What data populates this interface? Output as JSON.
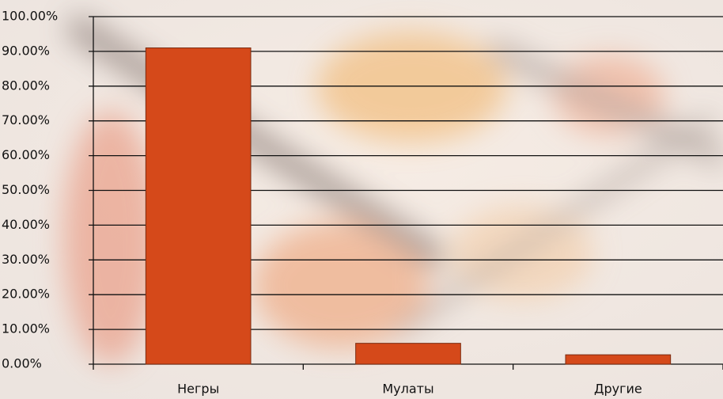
{
  "chart_data": {
    "type": "bar",
    "categories": [
      "Негры",
      "Мулаты",
      "Другие"
    ],
    "values": [
      91,
      6,
      2.7
    ],
    "color": "#d5491a",
    "ylim": [
      0,
      100
    ],
    "yticks": [
      {
        "value": 0,
        "label": "0.00%"
      },
      {
        "value": 10,
        "label": "10.00%"
      },
      {
        "value": 20,
        "label": "20.00%"
      },
      {
        "value": 30,
        "label": "30.00%"
      },
      {
        "value": 40,
        "label": "40.00%"
      },
      {
        "value": 50,
        "label": "50.00%"
      },
      {
        "value": 60,
        "label": "60.00%"
      },
      {
        "value": 70,
        "label": "70.00%"
      },
      {
        "value": 80,
        "label": "80.00%"
      },
      {
        "value": 90,
        "label": "90.00%"
      },
      {
        "value": 100,
        "label": "100.00%"
      }
    ],
    "grid": true
  }
}
